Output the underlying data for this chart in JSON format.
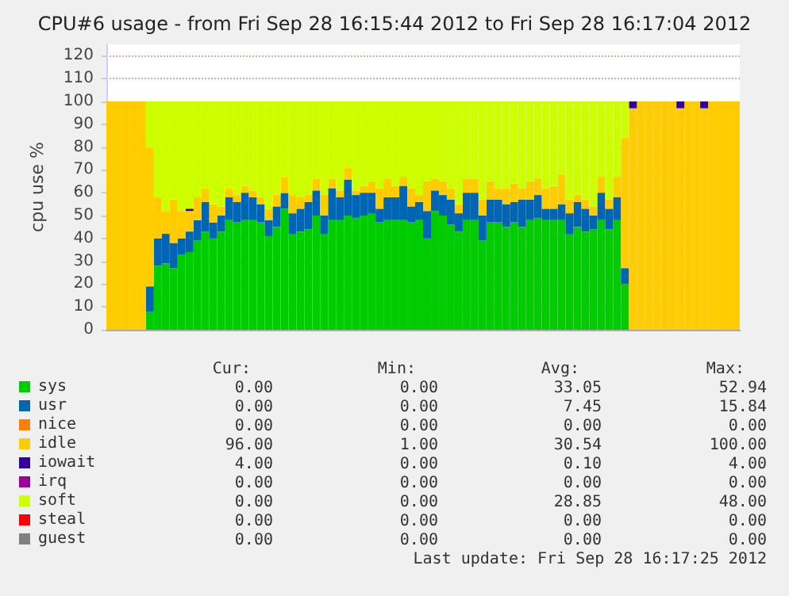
{
  "chart_data": {
    "type": "bar",
    "stacked": true,
    "title": "CPU#6 usage - from Fri Sep 28 16:15:44 2012 to Fri Sep 28 16:17:04 2012",
    "ylabel": "cpu use %",
    "categories": [
      null,
      null,
      null,
      null,
      null,
      null,
      null,
      null,
      null,
      null,
      null,
      null,
      null,
      null,
      null,
      null,
      null,
      null,
      null,
      null,
      null,
      null,
      null,
      null,
      null,
      null,
      null,
      null,
      null,
      null,
      null,
      null,
      null,
      null,
      null,
      null,
      null,
      null,
      null,
      null,
      null,
      null,
      null,
      null,
      null,
      null,
      null,
      null,
      null,
      null,
      null,
      null,
      null,
      null,
      null,
      null,
      null,
      null,
      null,
      null,
      null,
      null,
      null,
      null,
      null,
      null,
      null,
      null,
      null,
      null,
      null,
      null,
      null,
      null,
      null,
      null,
      null,
      null,
      null,
      null
    ],
    "series": [
      {
        "name": "sys",
        "color": "#00cc00",
        "values": [
          0,
          0,
          0,
          0,
          0,
          8,
          28,
          29,
          27,
          33,
          34,
          39,
          43,
          40,
          43,
          48,
          47,
          48,
          48,
          47,
          41,
          45,
          52.9,
          42,
          43,
          44,
          50,
          42,
          48,
          48,
          50,
          49,
          50,
          51,
          47,
          48,
          48,
          48,
          47,
          48,
          40,
          52,
          50,
          46,
          43,
          48,
          48,
          39,
          47,
          47,
          45,
          47,
          45,
          48,
          49,
          48,
          48,
          48,
          42,
          45,
          43,
          44,
          48,
          44,
          48,
          20,
          0,
          0,
          0,
          0,
          0,
          0,
          0,
          0,
          0,
          0,
          0,
          0,
          0,
          0
        ]
      },
      {
        "name": "usr",
        "color": "#0066b3",
        "values": [
          0,
          0,
          0,
          0,
          0,
          11,
          12,
          13,
          11,
          7,
          9,
          9,
          13,
          7,
          7,
          10,
          9,
          12,
          10,
          8,
          7,
          9,
          7,
          9,
          10,
          12,
          11,
          8,
          14,
          10,
          15.8,
          10,
          10,
          9,
          6,
          10,
          10,
          15,
          7,
          8,
          12,
          9,
          9,
          11,
          8,
          12,
          12,
          11,
          10,
          10,
          10,
          9,
          12,
          9,
          10,
          5,
          5,
          7,
          9,
          11,
          10,
          6,
          12,
          9,
          10,
          7,
          0,
          0,
          0,
          0,
          0,
          0,
          0,
          0,
          0,
          0,
          0,
          0,
          0,
          0
        ]
      },
      {
        "name": "nice",
        "color": "#ff8000",
        "values": [
          0,
          0,
          0,
          0,
          0,
          0,
          0,
          0,
          0,
          0,
          0,
          0,
          0,
          0,
          0,
          0,
          0,
          0,
          0,
          0,
          0,
          0,
          0,
          0,
          0,
          0,
          0,
          0,
          0,
          0,
          0,
          0,
          0,
          0,
          0,
          0,
          0,
          0,
          0,
          0,
          0,
          0,
          0,
          0,
          0,
          0,
          0,
          0,
          0,
          0,
          0,
          0,
          0,
          0,
          0,
          0,
          0,
          0,
          0,
          0,
          0,
          0,
          0,
          0,
          0,
          0,
          0,
          0,
          0,
          0,
          0,
          0,
          0,
          0,
          0,
          0,
          0,
          0,
          0,
          0
        ]
      },
      {
        "name": "idle",
        "color": "#ffcc00",
        "values": [
          100,
          100,
          100,
          100,
          100,
          61,
          18,
          10,
          19,
          12,
          9,
          10,
          6,
          8,
          4,
          4,
          3,
          3,
          3,
          3,
          5,
          5,
          7,
          8,
          5,
          3,
          5,
          9,
          4,
          3,
          5,
          2,
          3,
          5,
          9,
          8,
          5,
          4,
          8,
          3,
          13,
          5,
          6,
          5,
          4,
          6,
          6,
          7,
          8,
          5,
          7,
          8,
          5,
          8,
          7,
          9,
          10,
          13,
          6,
          3,
          4,
          4,
          7,
          4,
          9,
          57,
          97,
          100,
          100,
          100,
          100,
          100,
          97,
          100,
          100,
          97,
          100,
          100,
          100,
          100
        ]
      },
      {
        "name": "iowait",
        "color": "#330099",
        "values": [
          0,
          0,
          0,
          0,
          0,
          0,
          0,
          0,
          0,
          0,
          1,
          0,
          0,
          0,
          0,
          0,
          0,
          0,
          0,
          0,
          0,
          0,
          0,
          0,
          0,
          0,
          0,
          0,
          0,
          0,
          0,
          0,
          0,
          0,
          0,
          0,
          0,
          0,
          0,
          0,
          0,
          0,
          0,
          0,
          0,
          0,
          0,
          0,
          0,
          0,
          0,
          0,
          0,
          0,
          0,
          0,
          0,
          0,
          0,
          0,
          0,
          0,
          0,
          0,
          0,
          0,
          3,
          0,
          0,
          0,
          0,
          0,
          3,
          0,
          0,
          3,
          0,
          0,
          0,
          0
        ]
      },
      {
        "name": "irq",
        "color": "#990099",
        "values": [
          0,
          0,
          0,
          0,
          0,
          0,
          0,
          0,
          0,
          0,
          0,
          0,
          0,
          0,
          0,
          0,
          0,
          0,
          0,
          0,
          0,
          0,
          0,
          0,
          0,
          0,
          0,
          0,
          0,
          0,
          0,
          0,
          0,
          0,
          0,
          0,
          0,
          0,
          0,
          0,
          0,
          0,
          0,
          0,
          0,
          0,
          0,
          0,
          0,
          0,
          0,
          0,
          0,
          0,
          0,
          0,
          0,
          0,
          0,
          0,
          0,
          0,
          0,
          0,
          0,
          0,
          0,
          0,
          0,
          0,
          0,
          0,
          0,
          0,
          0,
          0,
          0,
          0,
          0,
          0
        ]
      },
      {
        "name": "soft",
        "color": "#ccff00",
        "values": [
          0,
          0,
          0,
          0,
          0,
          20,
          42,
          48,
          43,
          48,
          47,
          42,
          38,
          45,
          46,
          38,
          41,
          37,
          39,
          42,
          47,
          41,
          33.1,
          41,
          42,
          41,
          34,
          41,
          34,
          39,
          29.2,
          39,
          37,
          35,
          38,
          34,
          37,
          33,
          38,
          41,
          35,
          34,
          35,
          38,
          45,
          34,
          34,
          43,
          35,
          38,
          38,
          36,
          38,
          35,
          34,
          38,
          37,
          32,
          43,
          41,
          43,
          46,
          33,
          43,
          33,
          16,
          0,
          0,
          0,
          0,
          0,
          0,
          0,
          0,
          0,
          0,
          0,
          0,
          0,
          0
        ]
      },
      {
        "name": "steal",
        "color": "#ff0000",
        "values": [
          0,
          0,
          0,
          0,
          0,
          0,
          0,
          0,
          0,
          0,
          0,
          0,
          0,
          0,
          0,
          0,
          0,
          0,
          0,
          0,
          0,
          0,
          0,
          0,
          0,
          0,
          0,
          0,
          0,
          0,
          0,
          0,
          0,
          0,
          0,
          0,
          0,
          0,
          0,
          0,
          0,
          0,
          0,
          0,
          0,
          0,
          0,
          0,
          0,
          0,
          0,
          0,
          0,
          0,
          0,
          0,
          0,
          0,
          0,
          0,
          0,
          0,
          0,
          0,
          0,
          0,
          0,
          0,
          0,
          0,
          0,
          0,
          0,
          0,
          0,
          0,
          0,
          0,
          0,
          0
        ]
      },
      {
        "name": "guest",
        "color": "#808080",
        "values": [
          0,
          0,
          0,
          0,
          0,
          0,
          0,
          0,
          0,
          0,
          0,
          0,
          0,
          0,
          0,
          0,
          0,
          0,
          0,
          0,
          0,
          0,
          0,
          0,
          0,
          0,
          0,
          0,
          0,
          0,
          0,
          0,
          0,
          0,
          0,
          0,
          0,
          0,
          0,
          0,
          0,
          0,
          0,
          0,
          0,
          0,
          0,
          0,
          0,
          0,
          0,
          0,
          0,
          0,
          0,
          0,
          0,
          0,
          0,
          0,
          0,
          0,
          0,
          0,
          0,
          0,
          0,
          0,
          0,
          0,
          0,
          0,
          0,
          0,
          0,
          0,
          0,
          0,
          0,
          0
        ]
      }
    ],
    "ylim": [
      0,
      125
    ],
    "yticks": [
      0,
      10,
      20,
      30,
      40,
      50,
      60,
      70,
      80,
      90,
      100,
      110,
      120
    ],
    "grid": "y",
    "legend": "bottom left",
    "annotations": [
      "Cur:",
      "Min:",
      "Avg:",
      "Max:",
      "0.00",
      "0.00",
      "33.05",
      "52.94",
      "0.00",
      "0.00",
      "7.45",
      "15.84",
      "0.00",
      "0.00",
      "0.00",
      "0.00",
      "96.00",
      "1.00",
      "30.54",
      "100.00",
      "4.00",
      "0.00",
      "0.10",
      "4.00",
      "0.00",
      "0.00",
      "0.00",
      "0.00",
      "0.00",
      "0.00",
      "28.85",
      "48.00",
      "0.00",
      "0.00",
      "0.00",
      "0.00",
      "0.00",
      "0.00",
      "0.00",
      "0.00",
      "Last update: Fri Sep 28 16:17:25 2012"
    ]
  }
}
